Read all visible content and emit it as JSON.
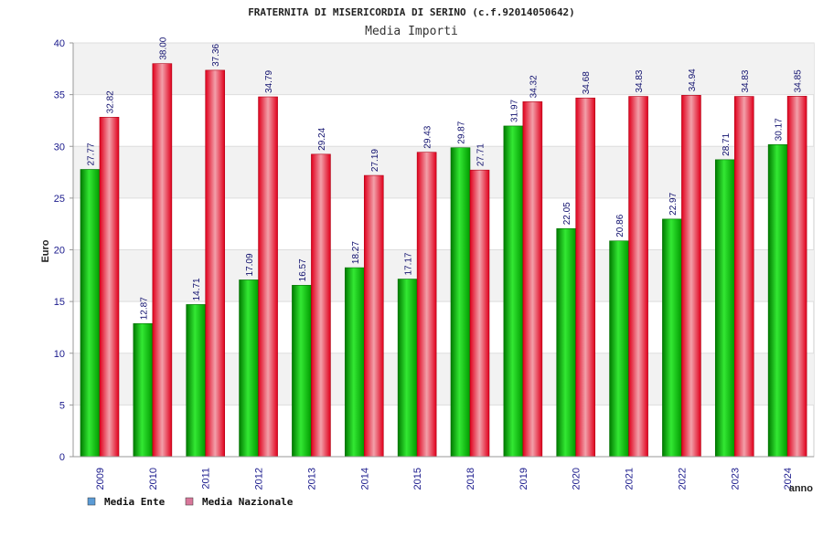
{
  "chart_data": {
    "type": "bar",
    "title": "FRATERNITA DI MISERICORDIA DI SERINO (c.f.92014050642)",
    "subtitle": "Media Importi",
    "xlabel": "anno",
    "ylabel": "Euro",
    "ylim": [
      0,
      40
    ],
    "yticks": [
      "0",
      "5",
      "10",
      "15",
      "20",
      "25",
      "30",
      "35",
      "40"
    ],
    "grid": "horizontal bands",
    "legend_position": "bottom-left",
    "categories": [
      "2009",
      "2010",
      "2011",
      "2012",
      "2013",
      "2014",
      "2015",
      "2018",
      "2019",
      "2020",
      "2021",
      "2022",
      "2023",
      "2024"
    ],
    "series": [
      {
        "name": "Media Ente",
        "color": "#00b000",
        "legend_color": "#5b9bd5",
        "values": [
          27.77,
          12.87,
          14.71,
          17.09,
          16.57,
          18.27,
          17.17,
          29.87,
          31.97,
          22.05,
          20.86,
          22.97,
          28.71,
          30.17
        ],
        "labels": [
          "27.77",
          "12.87",
          "14.71",
          "17.09",
          "16.57",
          "18.27",
          "17.17",
          "29.87",
          "31.97",
          "22.05",
          "20.86",
          "22.97",
          "28.71",
          "30.17"
        ]
      },
      {
        "name": "Media Nazionale",
        "color": "#e8001c",
        "legend_color": "#d8779a",
        "values": [
          32.82,
          38.0,
          37.36,
          34.79,
          29.24,
          27.19,
          29.43,
          27.71,
          34.32,
          34.68,
          34.83,
          34.94,
          34.83,
          34.85
        ],
        "labels": [
          "32.82",
          "38.00",
          "37.36",
          "34.79",
          "29.24",
          "27.19",
          "29.43",
          "27.71",
          "34.32",
          "34.68",
          "34.83",
          "34.94",
          "34.83",
          "34.85"
        ]
      }
    ]
  }
}
